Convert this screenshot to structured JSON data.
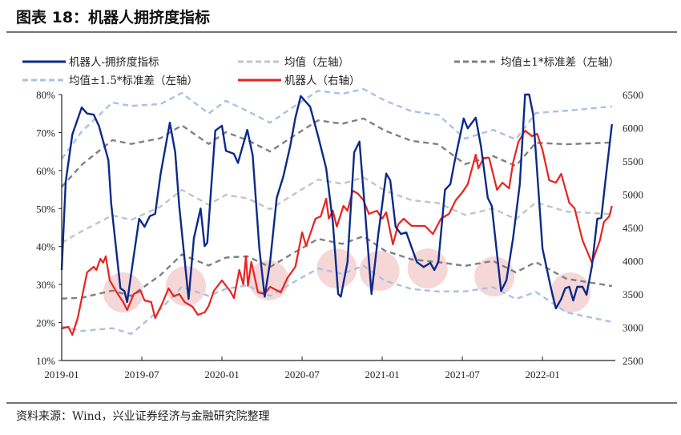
{
  "header": {
    "title": "图表 18：机器人拥挤度指标"
  },
  "footer": {
    "source": "资料来源：Wind，兴业证券经济与金融研究院整理"
  },
  "colors": {
    "crowding": "#0b2a8a",
    "robot": "#e8231f",
    "mean": "#c4c4c4",
    "sd1": "#808080",
    "sd15": "#a9c1e3",
    "highlight": "#f3c9c9"
  },
  "chart_data": {
    "type": "line",
    "title": "机器人拥挤度指标",
    "x_unit": "months since 2019-01",
    "xticks": [
      {
        "m": 0,
        "label": "2019-01"
      },
      {
        "m": 6,
        "label": "2019-07"
      },
      {
        "m": 12,
        "label": "2020-01"
      },
      {
        "m": 18,
        "label": "2020-07"
      },
      {
        "m": 24,
        "label": "2021-01"
      },
      {
        "m": 30,
        "label": "2021-07"
      },
      {
        "m": 36,
        "label": "2022-01"
      }
    ],
    "xlim": [
      0,
      41.3
    ],
    "y_left": {
      "lim": [
        10,
        80
      ],
      "ticks": [
        "10%",
        "20%",
        "30%",
        "40%",
        "50%",
        "60%",
        "70%",
        "80%"
      ],
      "values": [
        10,
        20,
        30,
        40,
        50,
        60,
        70,
        80
      ]
    },
    "y_right": {
      "lim": [
        2500,
        6500
      ],
      "ticks": [
        "2500",
        "3000",
        "3500",
        "4000",
        "4500",
        "5000",
        "5500",
        "6000",
        "6500"
      ],
      "values": [
        2500,
        3000,
        3500,
        4000,
        4500,
        5000,
        5500,
        6000,
        6500
      ]
    },
    "legend": [
      "机器人-拥挤度指标",
      "均值（左轴）",
      "均值±1*标准差（左轴）",
      "均值±1.5*标准差（左轴）",
      "机器人（右轴）"
    ],
    "legend_position": "top",
    "crowding": [
      [
        0,
        33.8
      ],
      [
        0.3,
        57
      ],
      [
        0.8,
        69.5
      ],
      [
        1.5,
        76.6
      ],
      [
        1.9,
        75
      ],
      [
        2.4,
        74.7
      ],
      [
        2.8,
        71.6
      ],
      [
        3.5,
        62.7
      ],
      [
        3.7,
        51.5
      ],
      [
        4.4,
        29
      ],
      [
        4.7,
        28.3
      ],
      [
        4.9,
        25.4
      ],
      [
        5.3,
        35.3
      ],
      [
        5.8,
        47.3
      ],
      [
        6.2,
        45.2
      ],
      [
        6.6,
        48
      ],
      [
        7,
        48.6
      ],
      [
        7.4,
        59
      ],
      [
        8.1,
        72.6
      ],
      [
        8.5,
        64.8
      ],
      [
        8.8,
        50.7
      ],
      [
        9.5,
        26.2
      ],
      [
        9.9,
        42.2
      ],
      [
        10.4,
        50
      ],
      [
        10.7,
        40.1
      ],
      [
        10.9,
        41
      ],
      [
        11.5,
        70.5
      ],
      [
        12,
        71.8
      ],
      [
        12.3,
        65.2
      ],
      [
        12.9,
        64.4
      ],
      [
        13.2,
        62
      ],
      [
        13.9,
        70.7
      ],
      [
        14.3,
        64
      ],
      [
        14.8,
        39.5
      ],
      [
        15.2,
        26.8
      ],
      [
        15.6,
        35.9
      ],
      [
        16.1,
        52.8
      ],
      [
        16.6,
        58.5
      ],
      [
        17.1,
        66.3
      ],
      [
        17.5,
        73.9
      ],
      [
        17.9,
        79.6
      ],
      [
        18.6,
        76.8
      ],
      [
        19.2,
        69
      ],
      [
        19.8,
        60.6
      ],
      [
        20.3,
        46.5
      ],
      [
        20.7,
        27.5
      ],
      [
        20.9,
        26.8
      ],
      [
        21.4,
        35.9
      ],
      [
        21.9,
        64.8
      ],
      [
        22.3,
        67.6
      ],
      [
        22.7,
        50
      ],
      [
        23.2,
        27.5
      ],
      [
        23.7,
        43.1
      ],
      [
        24.3,
        59.2
      ],
      [
        24.6,
        57.4
      ],
      [
        25,
        45.2
      ],
      [
        25.4,
        43.3
      ],
      [
        25.8,
        43.7
      ],
      [
        26.6,
        35.9
      ],
      [
        27.1,
        34.6
      ],
      [
        27.6,
        35.7
      ],
      [
        27.9,
        33.8
      ],
      [
        28.2,
        35.9
      ],
      [
        28.7,
        54.9
      ],
      [
        29.1,
        56.4
      ],
      [
        29.4,
        62
      ],
      [
        30.1,
        73.7
      ],
      [
        30.4,
        71.1
      ],
      [
        31,
        73.9
      ],
      [
        31.4,
        66.3
      ],
      [
        31.9,
        52.8
      ],
      [
        32.2,
        50.7
      ],
      [
        32.9,
        28.3
      ],
      [
        33.3,
        31.1
      ],
      [
        33.8,
        42.2
      ],
      [
        34.3,
        56.4
      ],
      [
        34.7,
        80
      ],
      [
        35,
        80
      ],
      [
        35.3,
        74.7
      ],
      [
        36,
        39.5
      ],
      [
        36.6,
        29.6
      ],
      [
        37,
        23.7
      ],
      [
        37.4,
        26.2
      ],
      [
        37.7,
        29
      ],
      [
        38,
        29.4
      ],
      [
        38.3,
        25.8
      ],
      [
        38.6,
        29.4
      ],
      [
        39,
        29.4
      ],
      [
        39.3,
        27.3
      ],
      [
        39.7,
        34.8
      ],
      [
        40.1,
        47.3
      ],
      [
        40.4,
        47.5
      ],
      [
        40.7,
        57
      ],
      [
        41.2,
        72.2
      ]
    ],
    "robot": [
      [
        0,
        2982
      ],
      [
        0.5,
        3006
      ],
      [
        0.8,
        2886
      ],
      [
        1.2,
        3139
      ],
      [
        1.9,
        3825
      ],
      [
        2.4,
        3910
      ],
      [
        2.6,
        3861
      ],
      [
        2.9,
        4030
      ],
      [
        3.1,
        3970
      ],
      [
        3.3,
        4066
      ],
      [
        3.6,
        3705
      ],
      [
        4.2,
        3500
      ],
      [
        4.6,
        3380
      ],
      [
        4.9,
        3259
      ],
      [
        5.4,
        3500
      ],
      [
        5.9,
        3548
      ],
      [
        6.2,
        3404
      ],
      [
        6.7,
        3380
      ],
      [
        7,
        3139
      ],
      [
        7.5,
        3343
      ],
      [
        8,
        3584
      ],
      [
        8.4,
        3464
      ],
      [
        8.8,
        3500
      ],
      [
        9.2,
        3380
      ],
      [
        9.8,
        3307
      ],
      [
        10.2,
        3187
      ],
      [
        10.7,
        3223
      ],
      [
        11,
        3319
      ],
      [
        11.4,
        3548
      ],
      [
        12,
        3705
      ],
      [
        12.6,
        3548
      ],
      [
        12.9,
        3440
      ],
      [
        13.3,
        3861
      ],
      [
        13.6,
        3645
      ],
      [
        13.8,
        4066
      ],
      [
        13.95,
        3620
      ],
      [
        14.2,
        3982
      ],
      [
        14.7,
        3524
      ],
      [
        15.2,
        3500
      ],
      [
        15.6,
        3608
      ],
      [
        16.4,
        3524
      ],
      [
        16.9,
        3741
      ],
      [
        17.5,
        3910
      ],
      [
        18,
        4428
      ],
      [
        18.3,
        4223
      ],
      [
        19,
        4633
      ],
      [
        19.4,
        4669
      ],
      [
        19.8,
        4934
      ],
      [
        20,
        4633
      ],
      [
        20.3,
        4753
      ],
      [
        20.6,
        4512
      ],
      [
        21.1,
        4825
      ],
      [
        21.4,
        4753
      ],
      [
        21.8,
        5054
      ],
      [
        22.2,
        5006
      ],
      [
        22.6,
        4910
      ],
      [
        23,
        4705
      ],
      [
        23.6,
        4753
      ],
      [
        24,
        4633
      ],
      [
        24.3,
        4729
      ],
      [
        24.8,
        4247
      ],
      [
        25.2,
        4548
      ],
      [
        25.6,
        4633
      ],
      [
        26.2,
        4524
      ],
      [
        27.2,
        4524
      ],
      [
        27.8,
        4403
      ],
      [
        28.4,
        4633
      ],
      [
        29,
        4705
      ],
      [
        29.5,
        4910
      ],
      [
        30,
        5030
      ],
      [
        30.4,
        5151
      ],
      [
        31,
        5596
      ],
      [
        31.2,
        5392
      ],
      [
        31.6,
        5548
      ],
      [
        32,
        5548
      ],
      [
        32.6,
        5066
      ],
      [
        33,
        5175
      ],
      [
        33.5,
        5090
      ],
      [
        33.8,
        5476
      ],
      [
        34.2,
        5789
      ],
      [
        34.7,
        5958
      ],
      [
        35.2,
        5873
      ],
      [
        35.6,
        5910
      ],
      [
        36,
        5669
      ],
      [
        36.5,
        5211
      ],
      [
        37,
        5175
      ],
      [
        37.4,
        5307
      ],
      [
        38,
        4874
      ],
      [
        38.4,
        4790
      ],
      [
        39,
        4307
      ],
      [
        39.7,
        3970
      ],
      [
        40.3,
        4307
      ],
      [
        40.6,
        4584
      ],
      [
        41,
        4669
      ],
      [
        41.2,
        4825
      ]
    ],
    "mean_std": [
      [
        0,
        41,
        14.7
      ],
      [
        1.5,
        44,
        17.5
      ],
      [
        3.8,
        48.2,
        19.8
      ],
      [
        5.2,
        47,
        20
      ],
      [
        7.4,
        50.5,
        18
      ],
      [
        9,
        54.9,
        17
      ],
      [
        11,
        51,
        16
      ],
      [
        12.3,
        53.6,
        16.5
      ],
      [
        13.9,
        52.7,
        15.3
      ],
      [
        15.6,
        49.8,
        15.2
      ],
      [
        17.5,
        54,
        15.4
      ],
      [
        19.2,
        57.6,
        15.6
      ],
      [
        21,
        56.5,
        15.8
      ],
      [
        22.6,
        58.2,
        15.5
      ],
      [
        24.2,
        54.7,
        15.8
      ],
      [
        26.2,
        52.2,
        15.6
      ],
      [
        28.2,
        51.4,
        15.5
      ],
      [
        30.2,
        48.3,
        13.4
      ],
      [
        32.3,
        50,
        13.8
      ],
      [
        34,
        47.2,
        14
      ],
      [
        35.5,
        51.6,
        15.7
      ],
      [
        37.8,
        49.2,
        17.7
      ],
      [
        41.2,
        48.5,
        18.9
      ]
    ],
    "highlights": [
      [
        4.6,
        27.9
      ],
      [
        9.3,
        29.6
      ],
      [
        15.5,
        31.1
      ],
      [
        20.6,
        34.2
      ],
      [
        23.8,
        33.6
      ],
      [
        27.4,
        34.2
      ],
      [
        32.4,
        32.1
      ],
      [
        38.1,
        27.9
      ]
    ]
  }
}
